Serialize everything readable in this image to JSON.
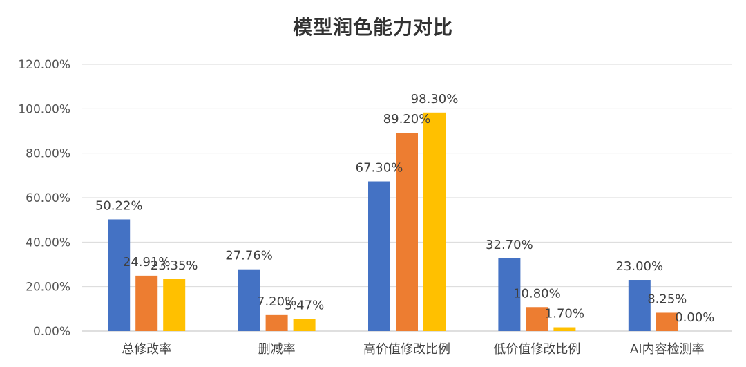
{
  "chart_data": {
    "type": "bar",
    "title": "模型润色能力对比",
    "categories": [
      "总修改率",
      "删减率",
      "高价值修改比例",
      "低价值修改比例",
      "AI内容检测率"
    ],
    "series": [
      {
        "color": "#4472C4",
        "values": [
          50.22,
          27.76,
          67.3,
          32.7,
          23.0
        ],
        "labels": [
          "50.22%",
          "27.76%",
          "67.30%",
          "32.70%",
          "23.00%"
        ]
      },
      {
        "color": "#ED7D31",
        "values": [
          24.91,
          7.2,
          89.2,
          10.8,
          8.25
        ],
        "labels": [
          "24.91%",
          "7.20%",
          "89.20%",
          "10.80%",
          "8.25%"
        ]
      },
      {
        "color": "#FFC000",
        "values": [
          23.35,
          5.47,
          98.3,
          1.7,
          0.0
        ],
        "labels": [
          "23.35%",
          "5.47%",
          "98.30%",
          "1.70%",
          "0.00%"
        ]
      }
    ],
    "ylim": [
      0,
      120
    ],
    "yticks": [
      0,
      20,
      40,
      60,
      80,
      100,
      120
    ],
    "ytick_labels": [
      "0.00%",
      "20.00%",
      "40.00%",
      "60.00%",
      "80.00%",
      "100.00%",
      "120.00%"
    ],
    "grid": true,
    "legend": "none"
  }
}
